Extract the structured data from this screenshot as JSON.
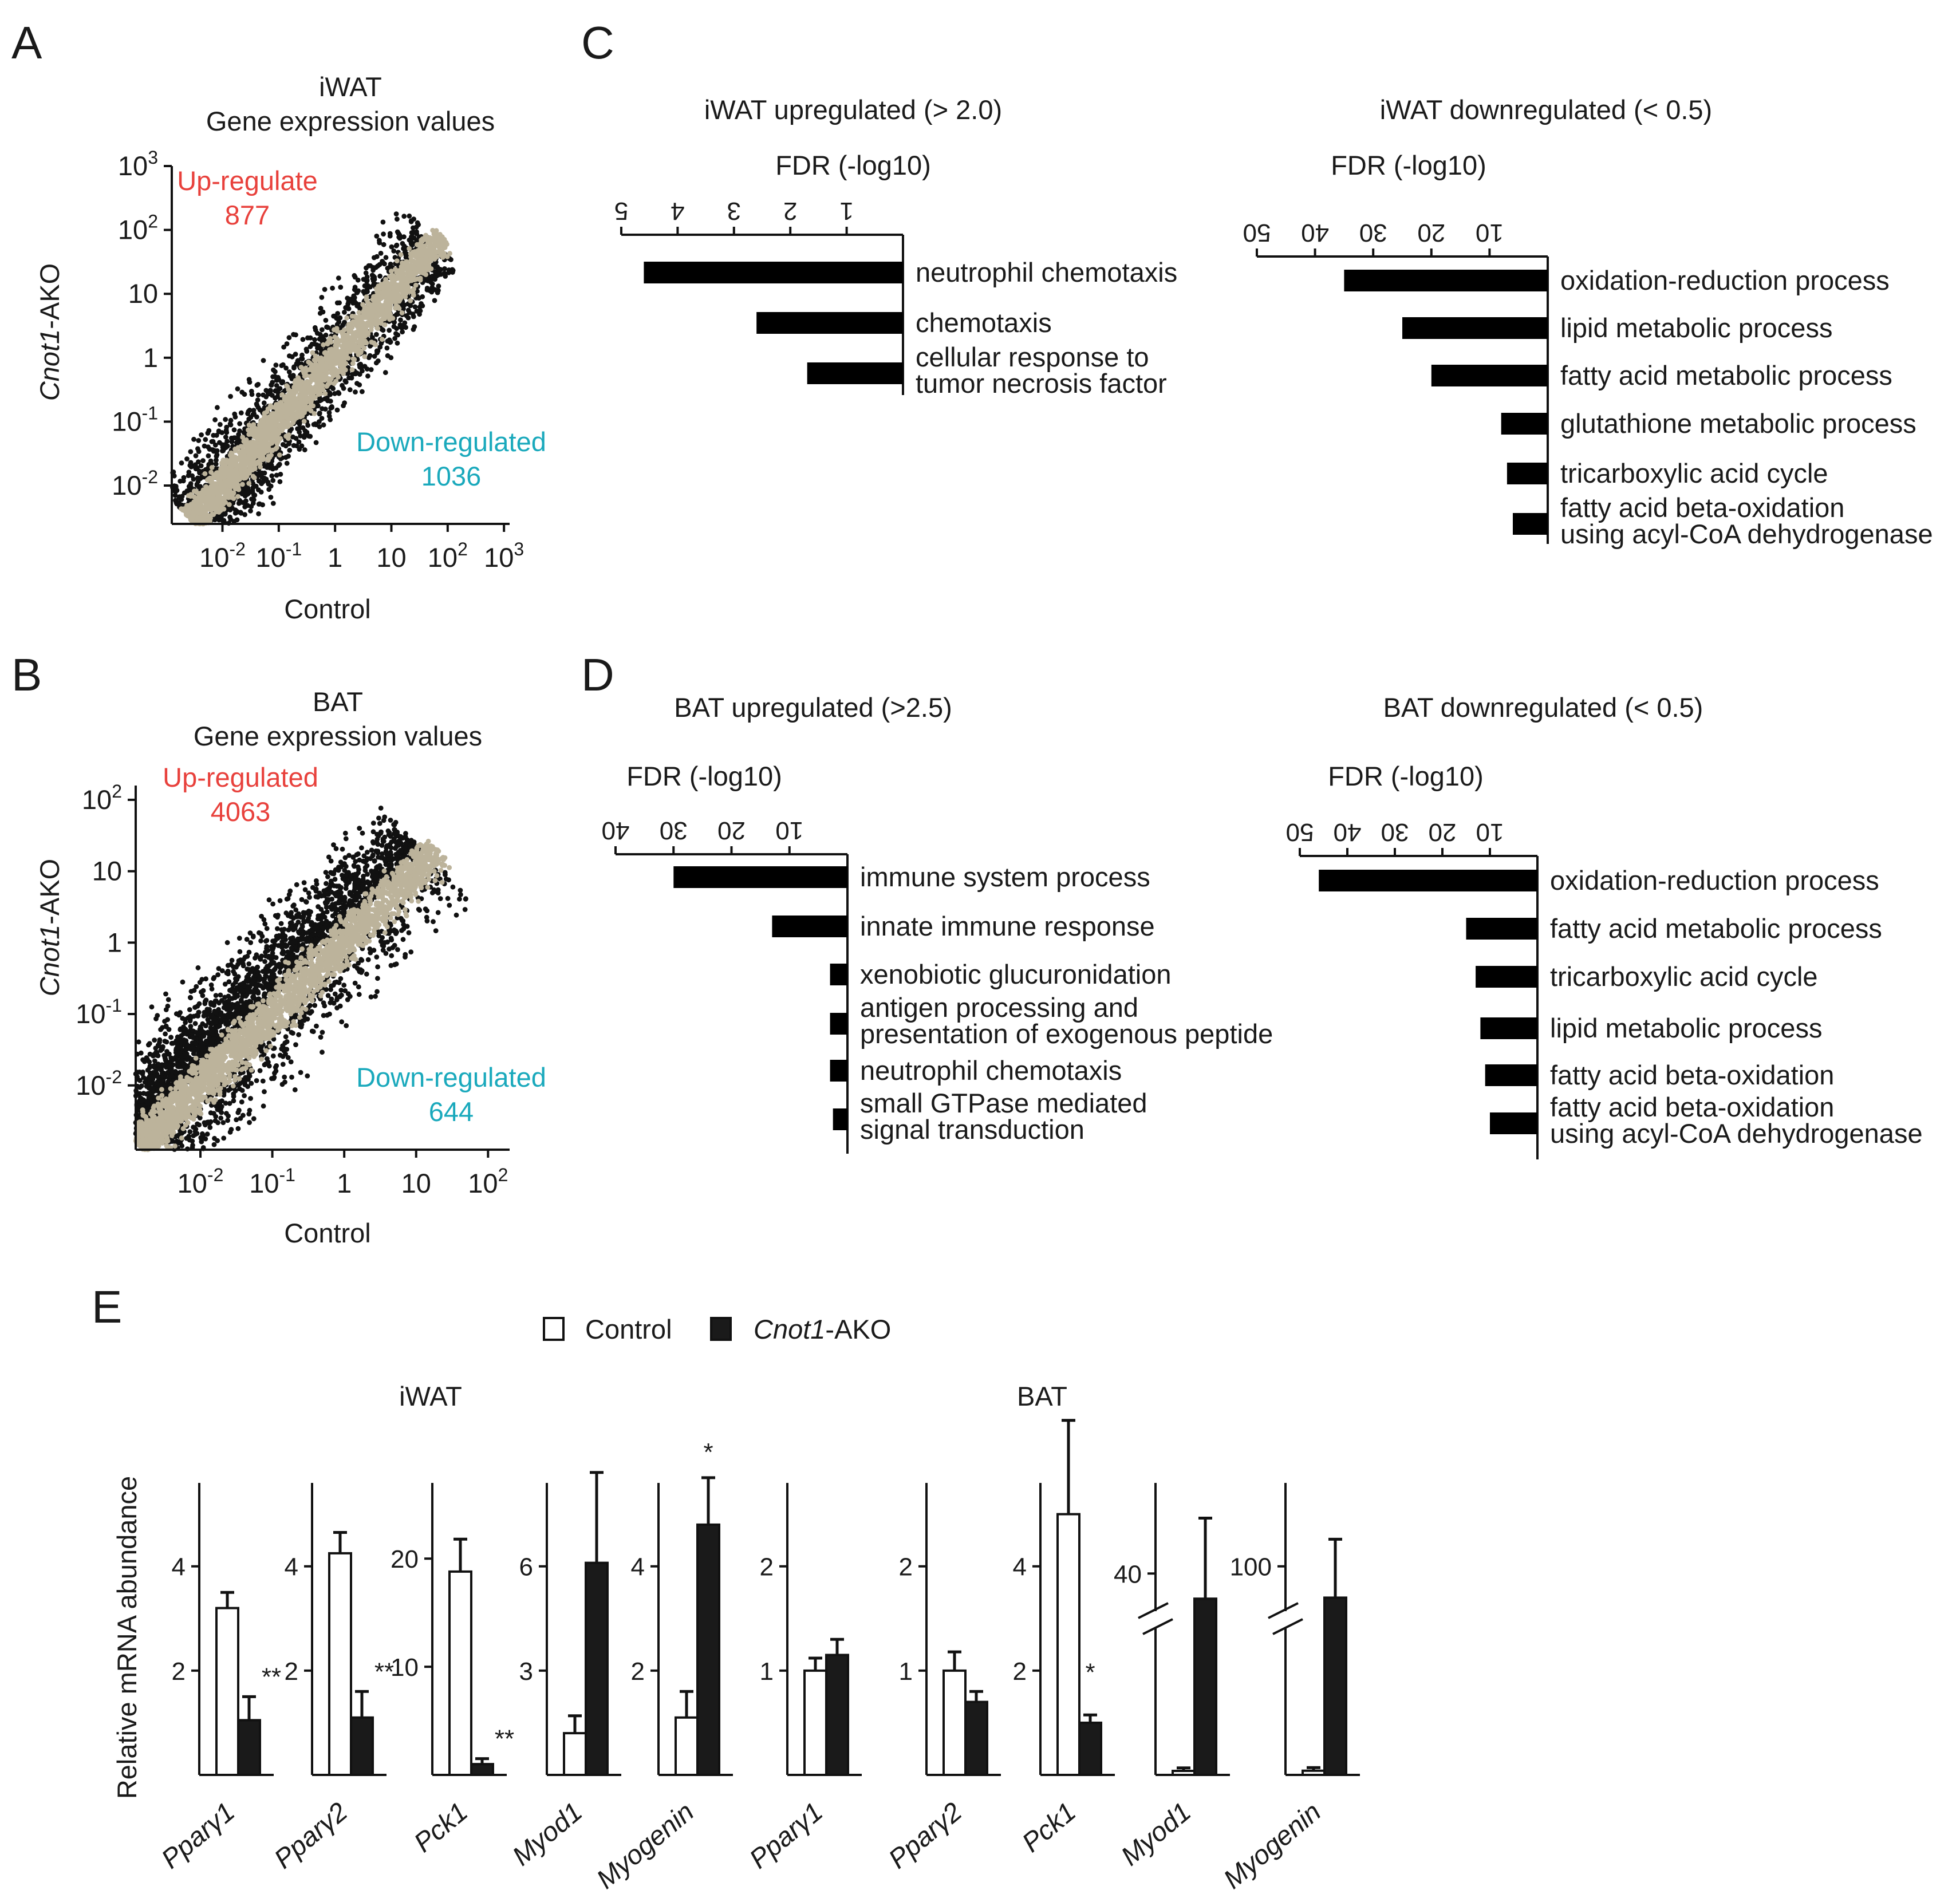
{
  "colors": {
    "up": "#e8413c",
    "down": "#1aa9bc",
    "cloud": "#bcb39b",
    "ink": "#111111"
  },
  "chart_data": [
    {
      "panel": "A",
      "type": "scatter",
      "title": [
        "iWAT",
        "Gene expression values"
      ],
      "xlabel": "Control",
      "ylabel_italic": "Cnot1",
      "ylabel_suffix": "-AKO",
      "xlim_log10": [
        -2.9,
        3.1
      ],
      "ylim_log10": [
        -2.6,
        3.0
      ],
      "xticks": [
        {
          "v": -2,
          "base": "10",
          "exp": "-2"
        },
        {
          "v": -1,
          "base": "10",
          "exp": "-1"
        },
        {
          "v": 0,
          "base": "1",
          "exp": ""
        },
        {
          "v": 1,
          "base": "10",
          "exp": ""
        },
        {
          "v": 2,
          "base": "10",
          "exp": "2"
        },
        {
          "v": 3,
          "base": "10",
          "exp": "3"
        }
      ],
      "yticks": [
        {
          "v": -2,
          "base": "10",
          "exp": "-2"
        },
        {
          "v": -1,
          "base": "10",
          "exp": "-1"
        },
        {
          "v": 0,
          "base": "1",
          "exp": ""
        },
        {
          "v": 1,
          "base": "10",
          "exp": ""
        },
        {
          "v": 2,
          "base": "10",
          "exp": "2"
        },
        {
          "v": 3,
          "base": "10",
          "exp": "3"
        }
      ],
      "up": {
        "label": "Up-regulate",
        "count": "877"
      },
      "down": {
        "label": "Down-regulated",
        "count": "1036"
      },
      "n_up": 700,
      "n_down": 750,
      "n_unchanged": 2400,
      "spread": 0.42,
      "maxv": 1.8
    },
    {
      "panel": "B",
      "type": "scatter",
      "title": [
        "BAT",
        "Gene expression values"
      ],
      "xlabel": "Control",
      "ylabel_italic": "Cnot1",
      "ylabel_suffix": "-AKO",
      "xlim_log10": [
        -2.9,
        2.3
      ],
      "ylim_log10": [
        -2.9,
        2.2
      ],
      "xticks": [
        {
          "v": -2,
          "base": "10",
          "exp": "-2"
        },
        {
          "v": -1,
          "base": "10",
          "exp": "-1"
        },
        {
          "v": 0,
          "base": "1",
          "exp": ""
        },
        {
          "v": 1,
          "base": "10",
          "exp": ""
        },
        {
          "v": 2,
          "base": "10",
          "exp": "2"
        }
      ],
      "yticks": [
        {
          "v": -2,
          "base": "10",
          "exp": "-2"
        },
        {
          "v": -1,
          "base": "10",
          "exp": "-1"
        },
        {
          "v": 0,
          "base": "1",
          "exp": ""
        },
        {
          "v": 1,
          "base": "10",
          "exp": ""
        },
        {
          "v": 2,
          "base": "10",
          "exp": "2"
        }
      ],
      "up": {
        "label": "Up-regulated",
        "count": "4063"
      },
      "down": {
        "label": "Down-regulated",
        "count": "644"
      },
      "n_up": 2400,
      "n_down": 600,
      "n_unchanged": 2600,
      "spread": 0.55,
      "maxv": 1.2
    },
    {
      "panel": "C",
      "type": "bar",
      "orientation": "horizontal-reversed",
      "title": "iWAT upregulated (> 2.0)",
      "axis_title": "FDR (-log10)",
      "xmax": 5,
      "ticks": [
        5,
        4,
        3,
        2,
        1
      ],
      "terms": [
        [
          "neutrophil chemotaxis"
        ],
        [
          "chemotaxis"
        ],
        [
          "cellular response to",
          "tumor necrosis factor"
        ]
      ],
      "values": [
        4.6,
        2.6,
        1.7
      ]
    },
    {
      "panel": "C",
      "type": "bar",
      "orientation": "horizontal-reversed",
      "title": "iWAT downregulated (< 0.5)",
      "axis_title": "FDR (-log10)",
      "xmax": 50,
      "ticks": [
        50,
        40,
        30,
        20,
        10
      ],
      "terms": [
        [
          "oxidation-reduction process"
        ],
        [
          "lipid metabolic process"
        ],
        [
          "fatty acid metabolic process"
        ],
        [
          "glutathione metabolic process"
        ],
        [
          "tricarboxylic acid cycle"
        ],
        [
          "fatty acid beta-oxidation",
          "using acyl-CoA dehydrogenase"
        ]
      ],
      "values": [
        35,
        25,
        20,
        8,
        7,
        6
      ]
    },
    {
      "panel": "D",
      "type": "bar",
      "orientation": "horizontal-reversed",
      "title": "BAT upregulated (>2.5)",
      "axis_title": "FDR (-log10)",
      "xmax": 40,
      "ticks": [
        40,
        30,
        20,
        10
      ],
      "terms": [
        [
          "immune system process"
        ],
        [
          "innate immune response"
        ],
        [
          "xenobiotic glucuronidation"
        ],
        [
          "antigen processing and",
          "presentation of exogenous peptide"
        ],
        [
          "neutrophil chemotaxis"
        ],
        [
          "small GTPase mediated",
          "signal transduction"
        ]
      ],
      "values": [
        30,
        13,
        3,
        3,
        3,
        2.5
      ]
    },
    {
      "panel": "D",
      "type": "bar",
      "orientation": "horizontal-reversed",
      "title": "BAT downregulated (< 0.5)",
      "axis_title": "FDR (-log10)",
      "xmax": 50,
      "ticks": [
        50,
        40,
        30,
        20,
        10
      ],
      "terms": [
        [
          "oxidation-reduction process"
        ],
        [
          "fatty acid metabolic process"
        ],
        [
          "tricarboxylic acid cycle"
        ],
        [
          "lipid metabolic process"
        ],
        [
          "fatty acid beta-oxidation"
        ],
        [
          "fatty acid beta-oxidation",
          "using acyl-CoA dehydrogenase"
        ]
      ],
      "values": [
        46,
        15,
        13,
        12,
        11,
        10
      ]
    },
    {
      "panel": "E",
      "type": "bar",
      "legend": {
        "control": "Control",
        "ako_italic": "Cnot1",
        "ako_suffix": "-AKO"
      },
      "ylabel": "Relative mRNA abundance",
      "groups": [
        {
          "title": "iWAT",
          "charts": [
            {
              "gene": "Pparγ1",
              "ylim": [
                0,
                5.6
              ],
              "ticks": [
                2,
                4
              ],
              "control": 3.2,
              "control_err": 0.3,
              "ako": 1.05,
              "ako_err": 0.45,
              "sig": "**"
            },
            {
              "gene": "Pparγ2",
              "ylim": [
                0,
                5.6
              ],
              "ticks": [
                2,
                4
              ],
              "control": 4.25,
              "control_err": 0.4,
              "ako": 1.1,
              "ako_err": 0.5,
              "sig": "**"
            },
            {
              "gene": "Pck1",
              "ylim": [
                0,
                27
              ],
              "ticks": [
                10,
                20
              ],
              "control": 18.8,
              "control_err": 3.0,
              "ako": 1.0,
              "ako_err": 0.5,
              "sig": "**"
            },
            {
              "gene": "Myod1",
              "ylim": [
                0,
                8.4
              ],
              "ticks": [
                3,
                6
              ],
              "control": 1.2,
              "control_err": 0.5,
              "ako": 6.1,
              "ako_err": 2.6,
              "sig": ""
            },
            {
              "gene": "Myogenin",
              "ylim": [
                0,
                5.6
              ],
              "ticks": [
                2,
                4
              ],
              "control": 1.1,
              "control_err": 0.5,
              "ako": 4.8,
              "ako_err": 0.9,
              "sig": "*"
            }
          ]
        },
        {
          "title": "BAT",
          "charts": [
            {
              "gene": "Pparγ1",
              "ylim": [
                0,
                2.8
              ],
              "ticks": [
                1,
                2
              ],
              "control": 1.0,
              "control_err": 0.12,
              "ako": 1.15,
              "ako_err": 0.15,
              "sig": ""
            },
            {
              "gene": "Pparγ2",
              "ylim": [
                0,
                2.8
              ],
              "ticks": [
                1,
                2
              ],
              "control": 1.0,
              "control_err": 0.18,
              "ako": 0.7,
              "ako_err": 0.1,
              "sig": ""
            },
            {
              "gene": "Pck1",
              "ylim": [
                0,
                5.6
              ],
              "ticks": [
                2,
                4
              ],
              "control": 5.0,
              "control_err": 1.8,
              "ako": 1.0,
              "ako_err": 0.15,
              "sig": "*"
            },
            {
              "gene": "Myod1",
              "ylim": [
                0,
                58
              ],
              "ticks": [
                40
              ],
              "control": 0.8,
              "control_err": 0.6,
              "ako": 35,
              "ako_err": 16,
              "sig": "",
              "axis_break": true
            },
            {
              "gene": "Myogenin",
              "ylim": [
                0,
                140
              ],
              "ticks": [
                100
              ],
              "control": 2.0,
              "control_err": 1.5,
              "ako": 85,
              "ako_err": 28,
              "sig": "",
              "axis_break": true
            }
          ]
        }
      ]
    }
  ],
  "panel_letters": [
    "A",
    "B",
    "C",
    "D",
    "E"
  ]
}
